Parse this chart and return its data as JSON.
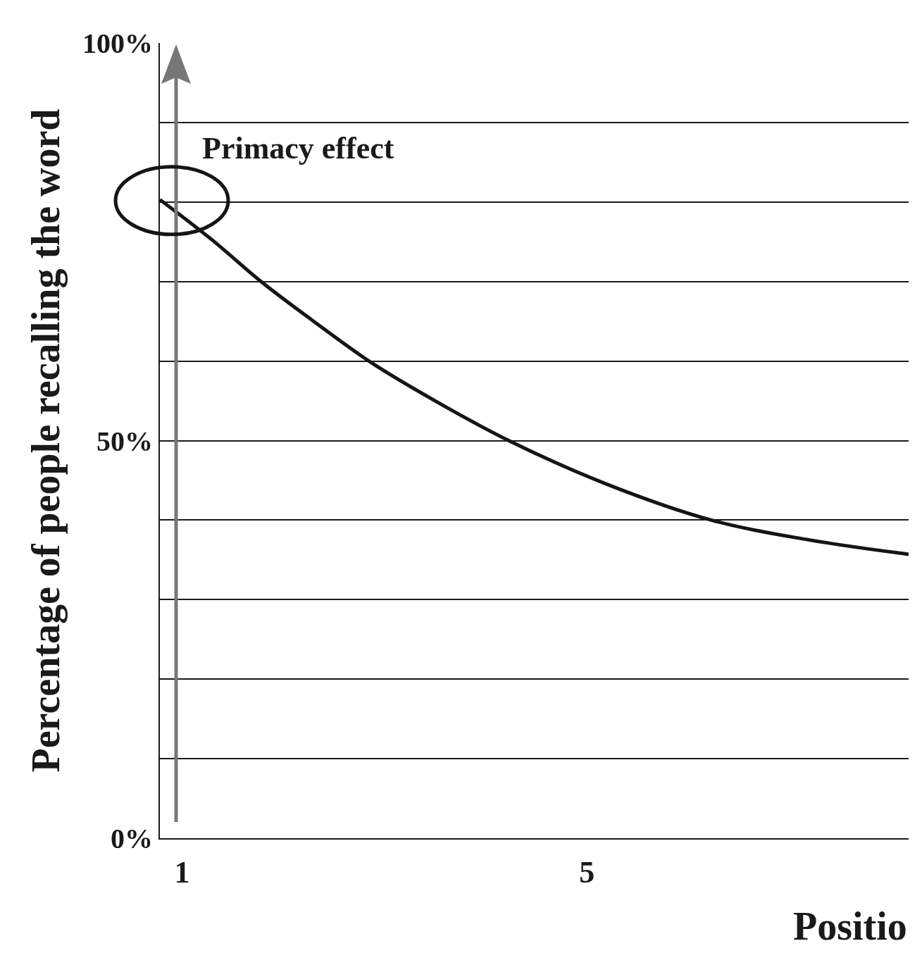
{
  "chart_data": {
    "type": "line",
    "xlabel": "Positio",
    "ylabel": "Percentage of people recalling the word",
    "x": [
      0.78,
      1.29,
      1.78,
      2.3,
      2.87,
      3.5,
      4.26,
      5.2,
      6.23,
      7.2,
      8.18
    ],
    "series": [
      {
        "color": "#151515",
        "values": [
          80.3,
          75.3,
          70,
          65,
          59.8,
          55,
          49.8,
          44.5,
          40,
          37.5,
          35.7
        ]
      }
    ],
    "xlim": [
      0.78,
      8.18
    ],
    "xticks": [
      1,
      5
    ],
    "ylim": [
      0,
      100
    ],
    "yticks": [
      {
        "value": 0,
        "label": "0%"
      },
      {
        "value": 10,
        "label": null
      },
      {
        "value": 20,
        "label": null
      },
      {
        "value": 30,
        "label": null
      },
      {
        "value": 40,
        "label": null
      },
      {
        "value": 50,
        "label": "50%"
      },
      {
        "value": 60,
        "label": null
      },
      {
        "value": 70,
        "label": null
      },
      {
        "value": 80,
        "label": null
      },
      {
        "value": 90,
        "label": null
      },
      {
        "value": 100,
        "label": "100%"
      }
    ],
    "grid": "y",
    "marker": "none",
    "line_style": "solid",
    "annotations": [
      {
        "text": "Primacy effect",
        "x": 0.78,
        "y": 80
      }
    ]
  }
}
